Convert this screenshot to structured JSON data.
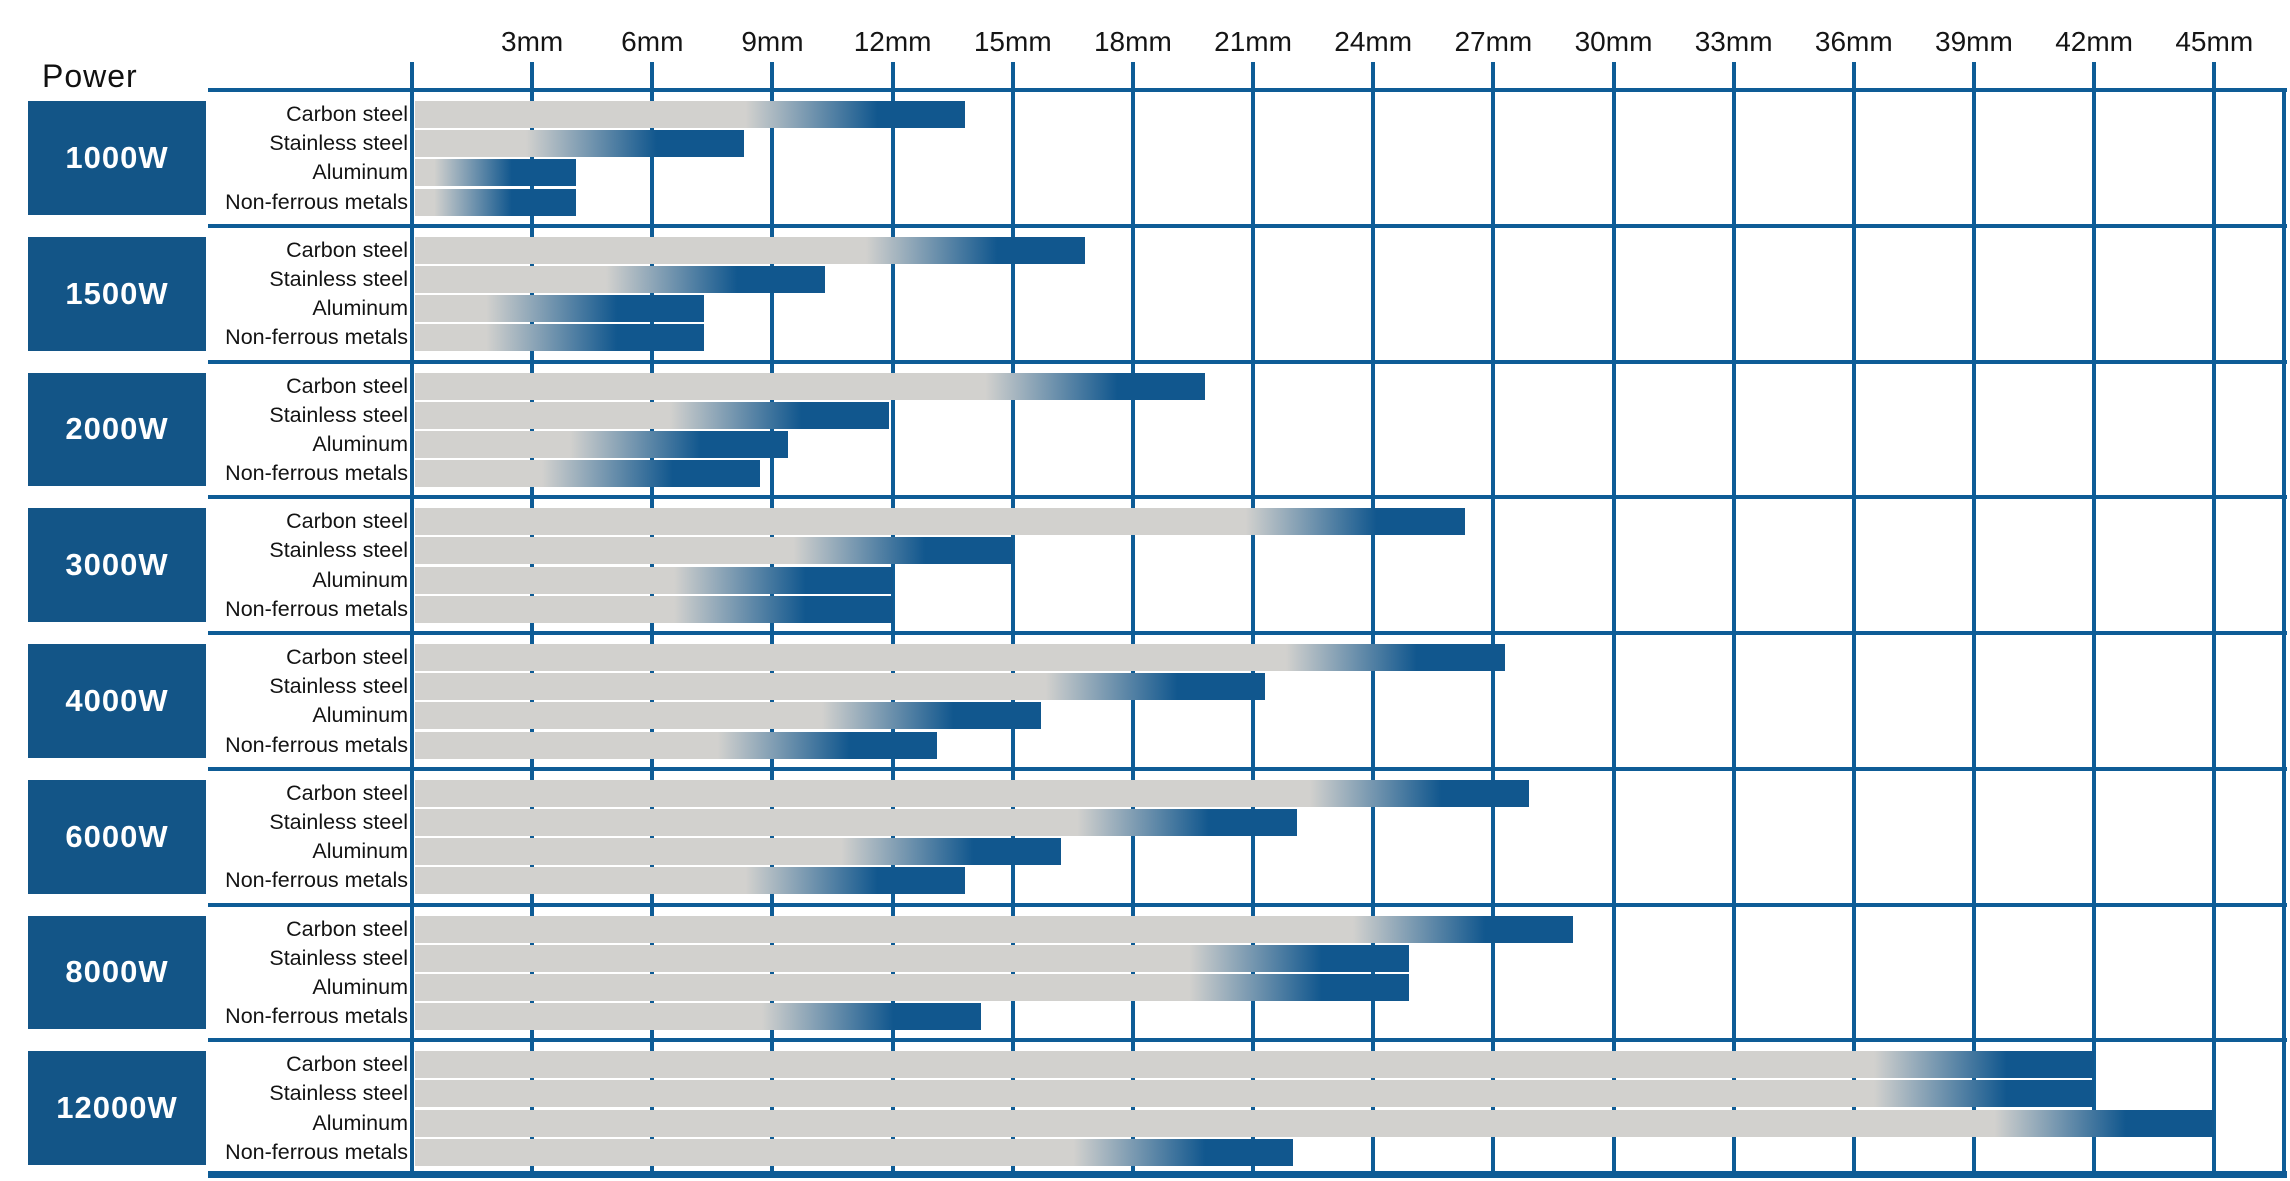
{
  "header": {
    "power_label": "Power"
  },
  "axis": {
    "tick_labels": [
      "3mm",
      "6mm",
      "9mm",
      "12mm",
      "15mm",
      "18mm",
      "21mm",
      "24mm",
      "27mm",
      "30mm",
      "33mm",
      "36mm",
      "39mm",
      "42mm",
      "45mm"
    ],
    "tick_values_mm": [
      3,
      6,
      9,
      12,
      15,
      18,
      21,
      24,
      27,
      30,
      33,
      36,
      39,
      42,
      45
    ],
    "unit": "mm",
    "min_mm": 0,
    "max_mm": 45
  },
  "chart_data": {
    "type": "bar",
    "orientation": "horizontal",
    "title": "Power",
    "xlabel": "",
    "ylabel": "",
    "unit": "mm",
    "xlim": [
      0,
      45
    ],
    "gridlines_every_mm": 3,
    "grid": true,
    "categories": [
      "Carbon steel",
      "Stainless steel",
      "Aluminum",
      "Non-ferrous metals"
    ],
    "series": [
      {
        "name": "1000W",
        "values": [
          13.8,
          8.3,
          4.1,
          4.1
        ]
      },
      {
        "name": "1500W",
        "values": [
          16.8,
          10.3,
          7.3,
          7.3
        ]
      },
      {
        "name": "2000W",
        "values": [
          19.8,
          11.9,
          9.4,
          8.7
        ]
      },
      {
        "name": "3000W",
        "values": [
          26.3,
          15.0,
          12.0,
          12.0
        ]
      },
      {
        "name": "4000W",
        "values": [
          27.3,
          21.3,
          15.7,
          13.1
        ]
      },
      {
        "name": "6000W",
        "values": [
          27.9,
          22.1,
          16.2,
          13.8
        ]
      },
      {
        "name": "8000W",
        "values": [
          29.0,
          24.9,
          24.9,
          14.2
        ]
      },
      {
        "name": "12000W",
        "values": [
          42.0,
          42.0,
          45.0,
          22.0
        ]
      }
    ]
  },
  "colors": {
    "grid_blue": "#0e5c96",
    "power_box_blue": "#135587",
    "bar_gray": "#d2d1ce",
    "bar_blue": "#11578e",
    "text_black": "#111111",
    "background": "#ffffff"
  }
}
